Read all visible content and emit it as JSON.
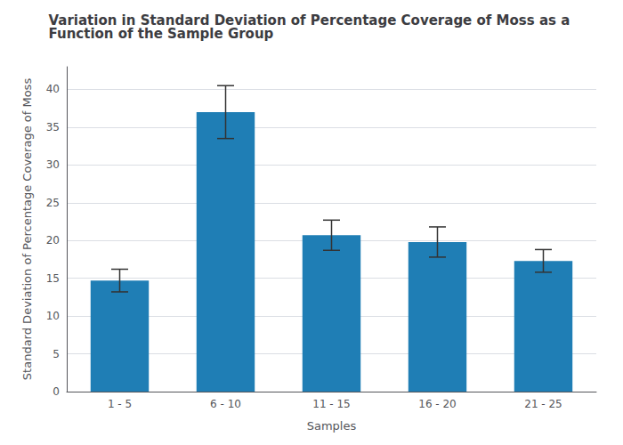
{
  "chart_data": {
    "type": "bar",
    "title": "Variation in Standard Deviation of Percentage Coverage of Moss as a Function of the Sample Group",
    "xlabel": "Samples",
    "ylabel": "Standard Deviation of Percentage Coverage of Moss",
    "categories": [
      "1 - 5",
      "6 - 10",
      "11 - 15",
      "16 - 20",
      "21 - 25"
    ],
    "values": [
      14.7,
      37.0,
      20.7,
      19.8,
      17.3
    ],
    "errors": [
      1.5,
      3.5,
      2.0,
      2.0,
      1.5
    ],
    "color": "#1f7eb5",
    "ylim": [
      0,
      43
    ],
    "yticks": [
      0,
      5,
      10,
      15,
      20,
      25,
      30,
      35,
      40
    ],
    "grid": true
  }
}
